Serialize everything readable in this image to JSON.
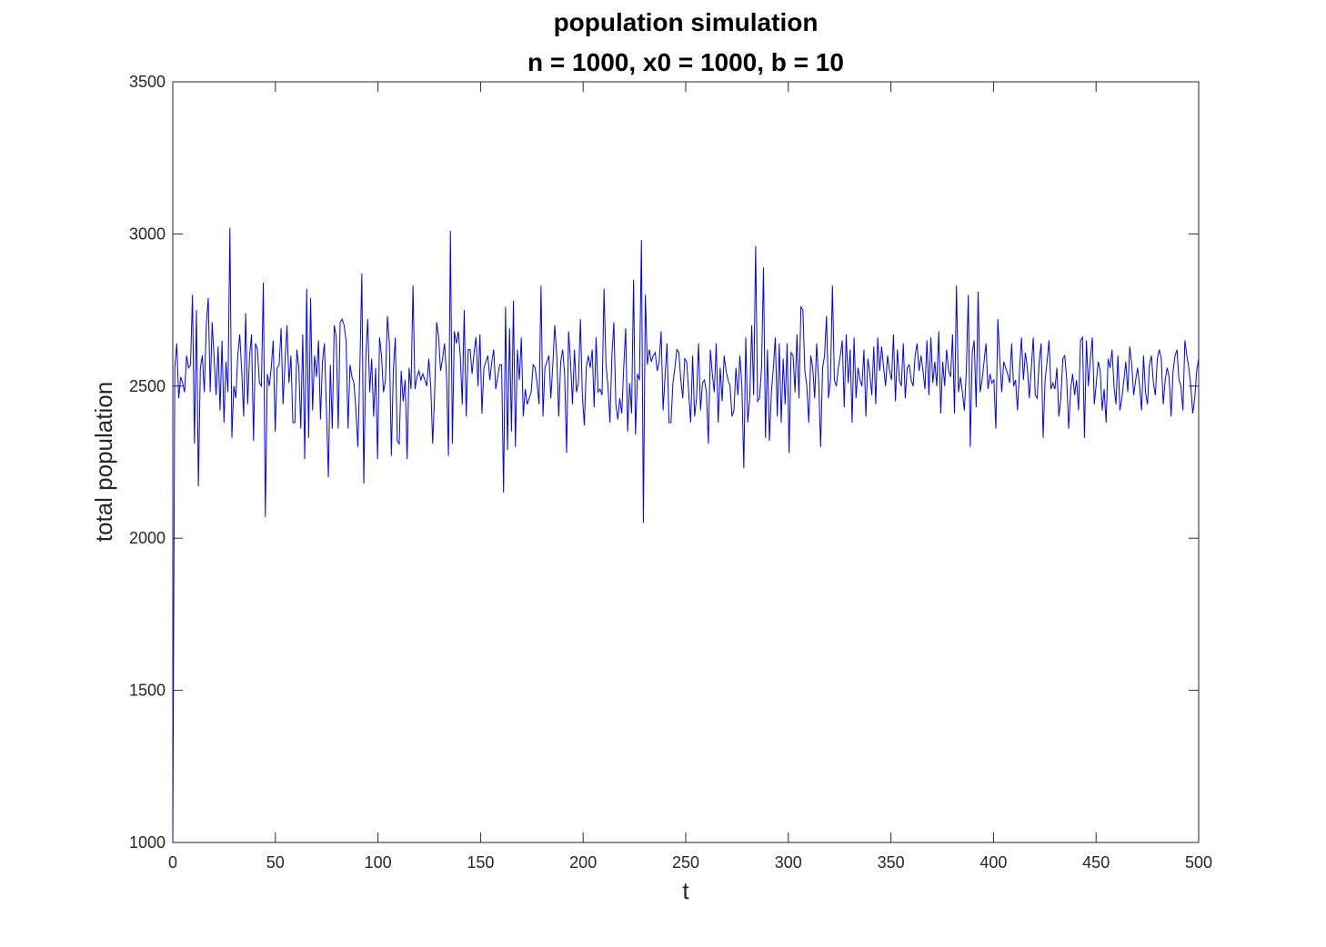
{
  "chart_data": {
    "type": "line",
    "title": "population simulation",
    "subtitle": "n = 1000, x0 = 1000, b = 10",
    "xlabel": "t",
    "ylabel": "total population",
    "xlim": [
      0,
      500
    ],
    "ylim": [
      1000,
      3500
    ],
    "xticks": [
      0,
      50,
      100,
      150,
      200,
      250,
      300,
      350,
      400,
      450,
      500
    ],
    "yticks": [
      1000,
      1500,
      2000,
      2500,
      3000,
      3500
    ],
    "grid": false,
    "line_color": "#0000ff",
    "series": [
      {
        "values": [
          1000,
          2560,
          2640,
          2460,
          2530,
          2510,
          2480,
          2600,
          2560,
          2570,
          2800,
          2310,
          2750,
          2170,
          2560,
          2600,
          2480,
          2700,
          2790,
          2480,
          2710,
          2590,
          2470,
          2630,
          2420,
          2650,
          2380,
          2580,
          2480,
          3020,
          2330,
          2500,
          2460,
          2600,
          2670,
          2550,
          2400,
          2740,
          2440,
          2600,
          2670,
          2320,
          2640,
          2620,
          2510,
          2500,
          2840,
          2070,
          2540,
          2500,
          2560,
          2650,
          2350,
          2560,
          2570,
          2690,
          2440,
          2580,
          2700,
          2510,
          2600,
          2380,
          2380,
          2620,
          2560,
          2360,
          2670,
          2260,
          2820,
          2330,
          2790,
          2420,
          2600,
          2530,
          2650,
          2390,
          2580,
          2640,
          2430,
          2200,
          2570,
          2360,
          2700,
          2660,
          2360,
          2710,
          2720,
          2700,
          2650,
          2360,
          2570,
          2530,
          2510,
          2420,
          2300,
          2560,
          2870,
          2180,
          2590,
          2720,
          2480,
          2590,
          2400,
          2560,
          2260,
          2660,
          2600,
          2480,
          2520,
          2730,
          2640,
          2270,
          2550,
          2660,
          2320,
          2310,
          2550,
          2450,
          2520,
          2260,
          2560,
          2490,
          2830,
          2490,
          2530,
          2550,
          2520,
          2540,
          2520,
          2500,
          2590,
          2500,
          2310,
          2480,
          2710,
          2660,
          2550,
          2590,
          2640,
          2540,
          2270,
          3010,
          2310,
          2680,
          2640,
          2680,
          2600,
          2440,
          2750,
          2400,
          2620,
          2620,
          2540,
          2610,
          2660,
          2500,
          2670,
          2410,
          2560,
          2580,
          2600,
          2520,
          2580,
          2620,
          2490,
          2530,
          2570,
          2570,
          2150,
          2760,
          2290,
          2690,
          2350,
          2780,
          2300,
          2620,
          2520,
          2660,
          2400,
          2490,
          2440,
          2460,
          2480,
          2570,
          2560,
          2510,
          2440,
          2830,
          2400,
          2560,
          2580,
          2600,
          2460,
          2570,
          2700,
          2600,
          2400,
          2580,
          2620,
          2540,
          2280,
          2680,
          2580,
          2440,
          2620,
          2480,
          2510,
          2720,
          2470,
          2370,
          2560,
          2600,
          2560,
          2620,
          2430,
          2660,
          2480,
          2490,
          2470,
          2820,
          2570,
          2500,
          2380,
          2600,
          2710,
          2440,
          2390,
          2460,
          2410,
          2560,
          2690,
          2350,
          2510,
          2410,
          2850,
          2340,
          2540,
          2520,
          2980,
          2050,
          2800,
          2570,
          2620,
          2580,
          2600,
          2610,
          2550,
          2580,
          2680,
          2420,
          2530,
          2640,
          2380,
          2380,
          2510,
          2560,
          2620,
          2610,
          2520,
          2460,
          2590,
          2580,
          2480,
          2380,
          2600,
          2400,
          2460,
          2640,
          2420,
          2510,
          2520,
          2480,
          2310,
          2620,
          2540,
          2480,
          2640,
          2380,
          2560,
          2450,
          2600,
          2550,
          2520,
          2500,
          2400,
          2420,
          2560,
          2470,
          2600,
          2500,
          2230,
          2660,
          2380,
          2460,
          2700,
          2470,
          2960,
          2450,
          2460,
          2560,
          2890,
          2330,
          2620,
          2320,
          2480,
          2560,
          2660,
          2400,
          2640,
          2380,
          2590,
          2440,
          2640,
          2280,
          2610,
          2600,
          2480,
          2670,
          2460,
          2760,
          2750,
          2550,
          2500,
          2380,
          2600,
          2560,
          2460,
          2640,
          2520,
          2300,
          2560,
          2600,
          2730,
          2460,
          2520,
          2830,
          2520,
          2500,
          2560,
          2600,
          2650,
          2430,
          2670,
          2510,
          2620,
          2380,
          2660,
          2460,
          2560,
          2520,
          2500,
          2620,
          2400,
          2590,
          2540,
          2470,
          2630,
          2440,
          2660,
          2550,
          2630,
          2560,
          2500,
          2600,
          2550,
          2520,
          2670,
          2450,
          2620,
          2520,
          2500,
          2640,
          2460,
          2560,
          2570,
          2520,
          2500,
          2600,
          2640,
          2550,
          2600,
          2550,
          2490,
          2650,
          2470,
          2660,
          2510,
          2580,
          2500,
          2680,
          2410,
          2580,
          2500,
          2620,
          2550,
          2530,
          2670,
          2410,
          2830,
          2480,
          2530,
          2480,
          2420,
          2550,
          2800,
          2300,
          2610,
          2650,
          2430,
          2810,
          2480,
          2520,
          2580,
          2640,
          2490,
          2540,
          2510,
          2520,
          2360,
          2720,
          2590,
          2480,
          2580,
          2560,
          2540,
          2510,
          2640,
          2500,
          2520,
          2420,
          2550,
          2660,
          2520,
          2610,
          2560,
          2460,
          2560,
          2660,
          2470,
          2460,
          2580,
          2640,
          2330,
          2520,
          2580,
          2650,
          2490,
          2510,
          2490,
          2560,
          2400,
          2460,
          2590,
          2600,
          2520,
          2360,
          2490,
          2540,
          2470,
          2520,
          2420,
          2650,
          2660,
          2330,
          2650,
          2500,
          2590,
          2660,
          2440,
          2510,
          2580,
          2550,
          2420,
          2490,
          2380,
          2590,
          2560,
          2620,
          2500,
          2440,
          2600,
          2420,
          2460,
          2520,
          2580,
          2480,
          2630,
          2570,
          2470,
          2520,
          2560,
          2500,
          2420,
          2600,
          2480,
          2440,
          2570,
          2600,
          2510,
          2470,
          2590,
          2620,
          2590,
          2440,
          2520,
          2560,
          2530,
          2400,
          2550,
          2600,
          2620,
          2520,
          2500,
          2420,
          2650,
          2600,
          2560,
          2500,
          2410,
          2460,
          2550,
          2590
        ]
      }
    ]
  }
}
